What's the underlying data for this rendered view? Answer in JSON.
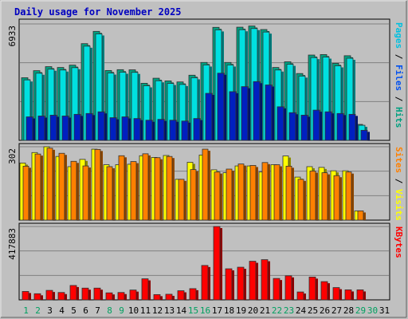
{
  "chart_data": [
    {
      "type": "bar",
      "title": "Daily usage for November 2025",
      "ymax_label": "6933",
      "ylim": [
        0,
        6933
      ],
      "right_label_parts": [
        "Pages",
        " / ",
        "Files",
        " / ",
        "Hits"
      ],
      "right_label_colors": [
        "#00c0e0",
        "#000000",
        "#0050f0",
        "#000000",
        "#00a080"
      ],
      "categories": [
        "1",
        "2",
        "3",
        "4",
        "5",
        "6",
        "7",
        "8",
        "9",
        "10",
        "11",
        "12",
        "13",
        "14",
        "15",
        "16",
        "17",
        "18",
        "19",
        "20",
        "21",
        "22",
        "23",
        "24",
        "25",
        "26",
        "27",
        "28",
        "29",
        "30",
        "31"
      ],
      "series": [
        {
          "name": "Hits",
          "color": "#00a080",
          "values": [
            3730,
            4150,
            4390,
            4340,
            4480,
            5760,
            6490,
            4160,
            4210,
            4200,
            3400,
            3700,
            3540,
            3480,
            3880,
            4640,
            6730,
            4640,
            6740,
            6810,
            6600,
            4340,
            4680,
            3980,
            5080,
            5110,
            4590,
            5040,
            950,
            null,
            null
          ]
        },
        {
          "name": "Files",
          "color": "#00e0e0",
          "values": [
            3600,
            4000,
            4240,
            4190,
            4330,
            5610,
            6340,
            4010,
            4060,
            4050,
            3250,
            3550,
            3390,
            3330,
            3730,
            4490,
            6580,
            4490,
            6590,
            6660,
            6450,
            4190,
            4530,
            3830,
            4930,
            4960,
            4440,
            4890,
            900,
            null,
            null
          ]
        },
        {
          "name": "Pages",
          "color": "#0020c0",
          "values": [
            1400,
            1450,
            1500,
            1450,
            1550,
            1600,
            1700,
            1350,
            1400,
            1300,
            1200,
            1250,
            1200,
            1150,
            1300,
            2800,
            4000,
            2900,
            3200,
            3500,
            3300,
            2000,
            1650,
            1500,
            1800,
            1700,
            1600,
            1550,
            600,
            null,
            null
          ]
        }
      ]
    },
    {
      "type": "bar",
      "ymax_label": "302",
      "ylim": [
        0,
        302
      ],
      "right_label_parts": [
        "Sites",
        " / ",
        "Visits"
      ],
      "right_label_colors": [
        "#ff8000",
        "#000000",
        "#ffff00"
      ],
      "categories": [
        "1",
        "2",
        "3",
        "4",
        "5",
        "6",
        "7",
        "8",
        "9",
        "10",
        "11",
        "12",
        "13",
        "14",
        "15",
        "16",
        "17",
        "18",
        "19",
        "20",
        "21",
        "22",
        "23",
        "24",
        "25",
        "26",
        "27",
        "28",
        "29",
        "30",
        "31"
      ],
      "series": [
        {
          "name": "Visits",
          "color": "#ffff00",
          "values": [
            235,
            278,
            302,
            262,
            220,
            250,
            292,
            228,
            228,
            230,
            265,
            258,
            266,
            168,
            238,
            268,
            207,
            195,
            223,
            223,
            198,
            228,
            264,
            177,
            220,
            217,
            203,
            203,
            38,
            null,
            null
          ]
        },
        {
          "name": "Sites",
          "color": "#ff8000",
          "values": [
            222,
            272,
            296,
            275,
            242,
            223,
            291,
            220,
            265,
            241,
            273,
            257,
            262,
            168,
            208,
            292,
            198,
            210,
            231,
            225,
            237,
            228,
            222,
            168,
            202,
            195,
            183,
            198,
            38,
            null,
            null
          ]
        }
      ]
    },
    {
      "type": "bar",
      "ymax_label": "417883",
      "ylim": [
        0,
        417883
      ],
      "right_label_parts": [
        "KBytes"
      ],
      "right_label_colors": [
        "#ff0000"
      ],
      "categories": [
        "1",
        "2",
        "3",
        "4",
        "5",
        "6",
        "7",
        "8",
        "9",
        "10",
        "11",
        "12",
        "13",
        "14",
        "15",
        "16",
        "17",
        "18",
        "19",
        "20",
        "21",
        "22",
        "23",
        "24",
        "25",
        "26",
        "27",
        "28",
        "29",
        "30",
        "31"
      ],
      "weekend_days": [
        1,
        2,
        8,
        9,
        15,
        16,
        22,
        23,
        29,
        30
      ],
      "series": [
        {
          "name": "KBytes",
          "color": "#ff0000",
          "values": [
            48000,
            35000,
            54000,
            42000,
            82000,
            67000,
            67000,
            40000,
            42000,
            56000,
            120000,
            30000,
            32000,
            52000,
            64000,
            196000,
            417883,
            177000,
            186000,
            220000,
            229000,
            122000,
            137000,
            45000,
            130000,
            104000,
            70000,
            57000,
            57000,
            null,
            null
          ]
        }
      ]
    }
  ]
}
